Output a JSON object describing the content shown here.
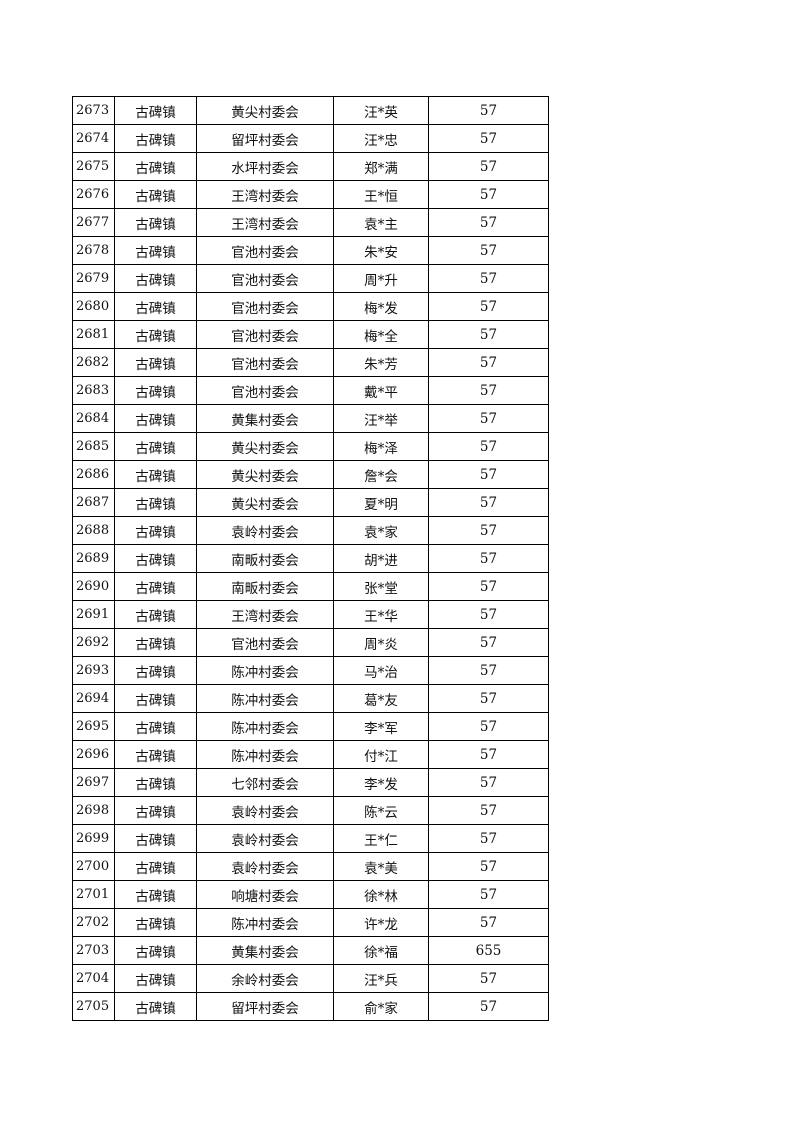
{
  "table": {
    "rows": [
      [
        "2673",
        "古碑镇",
        "黄尖村委会",
        "汪*英",
        "57"
      ],
      [
        "2674",
        "古碑镇",
        "留坪村委会",
        "汪*忠",
        "57"
      ],
      [
        "2675",
        "古碑镇",
        "水坪村委会",
        "郑*满",
        "57"
      ],
      [
        "2676",
        "古碑镇",
        "王湾村委会",
        "王*恒",
        "57"
      ],
      [
        "2677",
        "古碑镇",
        "王湾村委会",
        "袁*主",
        "57"
      ],
      [
        "2678",
        "古碑镇",
        "官池村委会",
        "朱*安",
        "57"
      ],
      [
        "2679",
        "古碑镇",
        "官池村委会",
        "周*升",
        "57"
      ],
      [
        "2680",
        "古碑镇",
        "官池村委会",
        "梅*发",
        "57"
      ],
      [
        "2681",
        "古碑镇",
        "官池村委会",
        "梅*全",
        "57"
      ],
      [
        "2682",
        "古碑镇",
        "官池村委会",
        "朱*芳",
        "57"
      ],
      [
        "2683",
        "古碑镇",
        "官池村委会",
        "戴*平",
        "57"
      ],
      [
        "2684",
        "古碑镇",
        "黄集村委会",
        "汪*举",
        "57"
      ],
      [
        "2685",
        "古碑镇",
        "黄尖村委会",
        "梅*泽",
        "57"
      ],
      [
        "2686",
        "古碑镇",
        "黄尖村委会",
        "詹*会",
        "57"
      ],
      [
        "2687",
        "古碑镇",
        "黄尖村委会",
        "夏*明",
        "57"
      ],
      [
        "2688",
        "古碑镇",
        "袁岭村委会",
        "袁*家",
        "57"
      ],
      [
        "2689",
        "古碑镇",
        "南畈村委会",
        "胡*进",
        "57"
      ],
      [
        "2690",
        "古碑镇",
        "南畈村委会",
        "张*堂",
        "57"
      ],
      [
        "2691",
        "古碑镇",
        "王湾村委会",
        "王*华",
        "57"
      ],
      [
        "2692",
        "古碑镇",
        "官池村委会",
        "周*炎",
        "57"
      ],
      [
        "2693",
        "古碑镇",
        "陈冲村委会",
        "马*治",
        "57"
      ],
      [
        "2694",
        "古碑镇",
        "陈冲村委会",
        "葛*友",
        "57"
      ],
      [
        "2695",
        "古碑镇",
        "陈冲村委会",
        "李*军",
        "57"
      ],
      [
        "2696",
        "古碑镇",
        "陈冲村委会",
        "付*江",
        "57"
      ],
      [
        "2697",
        "古碑镇",
        "七邻村委会",
        "李*发",
        "57"
      ],
      [
        "2698",
        "古碑镇",
        "袁岭村委会",
        "陈*云",
        "57"
      ],
      [
        "2699",
        "古碑镇",
        "袁岭村委会",
        "王*仁",
        "57"
      ],
      [
        "2700",
        "古碑镇",
        "袁岭村委会",
        "袁*美",
        "57"
      ],
      [
        "2701",
        "古碑镇",
        "响塘村委会",
        "徐*林",
        "57"
      ],
      [
        "2702",
        "古碑镇",
        "陈冲村委会",
        "许*龙",
        "57"
      ],
      [
        "2703",
        "古碑镇",
        "黄集村委会",
        "徐*福",
        "655"
      ],
      [
        "2704",
        "古碑镇",
        "余岭村委会",
        "汪*兵",
        "57"
      ],
      [
        "2705",
        "古碑镇",
        "留坪村委会",
        "俞*家",
        "57"
      ]
    ]
  }
}
